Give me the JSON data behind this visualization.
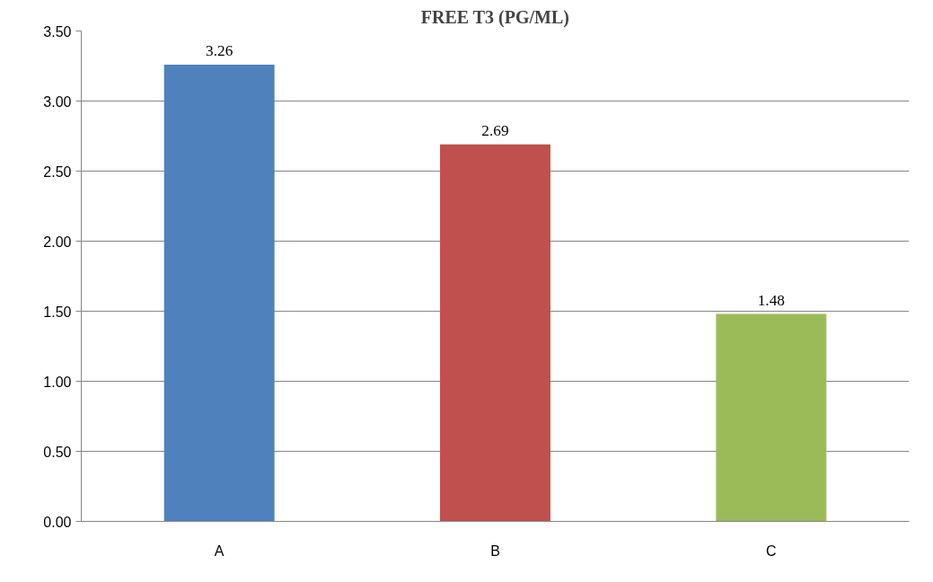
{
  "chart_data": {
    "type": "bar",
    "title": "FREE T3 (PG/ML)",
    "categories": [
      "A",
      "B",
      "C"
    ],
    "values": [
      3.26,
      2.69,
      1.48
    ],
    "colors": [
      "#4f81bd",
      "#c0504d",
      "#9bbb59"
    ],
    "ylim": [
      0,
      3.5
    ],
    "yticks": [
      {
        "value": 0,
        "label": "0.00"
      },
      {
        "value": 0.5,
        "label": "0.50"
      },
      {
        "value": 1,
        "label": "1.00"
      },
      {
        "value": 1.5,
        "label": "1.50"
      },
      {
        "value": 2,
        "label": "2.00"
      },
      {
        "value": 2.5,
        "label": "2.50"
      },
      {
        "value": 3,
        "label": "3.00"
      },
      {
        "value": 3.5,
        "label": "3.50"
      }
    ],
    "grid": "y",
    "data_labels": true
  }
}
